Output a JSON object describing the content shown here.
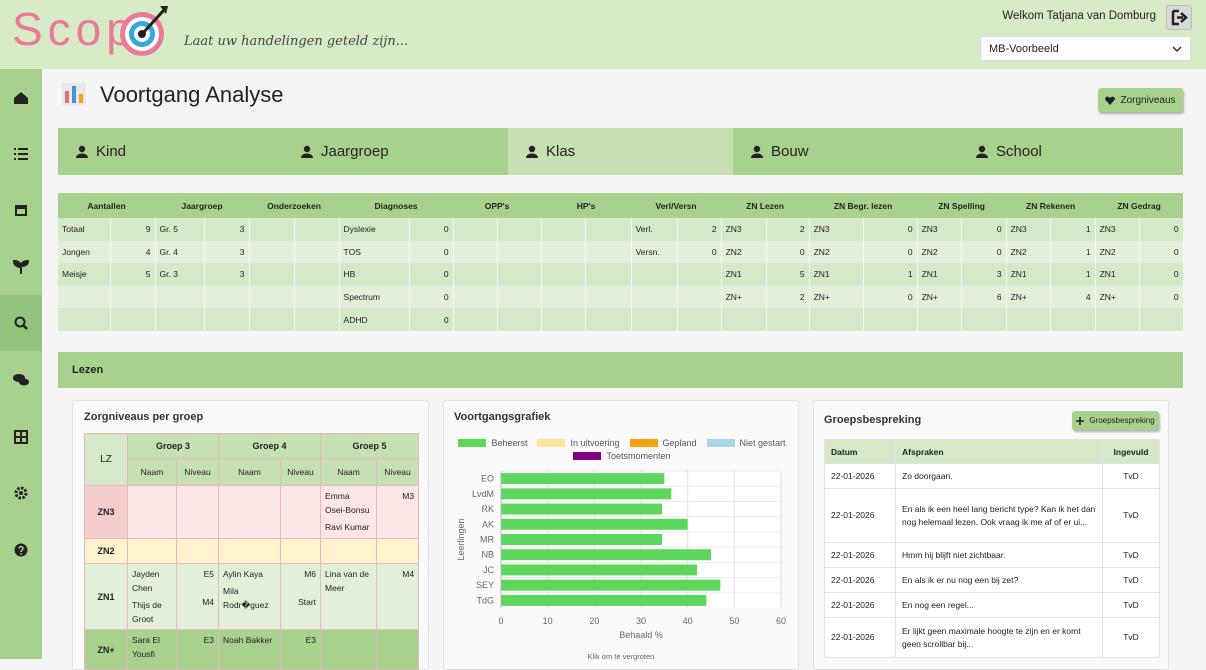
{
  "header": {
    "logo": "Scop",
    "tagline": "Laat uw handelingen geteld zijn...",
    "welcome": "Welkom Tatjana van Domburg",
    "school_select": "MB-Voorbeeld"
  },
  "page": {
    "title": "Voortgang Analyse",
    "button": "Zorgniveaus"
  },
  "tabs": [
    "Kind",
    "Jaargroep",
    "Klas",
    "Bouw",
    "School"
  ],
  "active_tab": 2,
  "stats_table": {
    "headers": [
      "Aantallen",
      "Jaargroep",
      "Onderzoeken",
      "Diagnoses",
      "OPP's",
      "HP's",
      "Verl/Versn",
      "ZN Lezen",
      "ZN Begr. lezen",
      "ZN Spelling",
      "ZN Rekenen",
      "ZN Gedrag"
    ],
    "rows": [
      [
        "Totaal",
        9,
        "Gr. 5",
        3,
        null,
        null,
        "Dyslexie",
        0,
        null,
        null,
        null,
        null,
        "Verl.",
        2,
        "ZN3",
        2,
        "ZN3",
        0,
        "ZN3",
        0,
        "ZN3",
        1,
        "ZN3",
        0
      ],
      [
        "Jongen",
        4,
        "Gr. 4",
        3,
        null,
        null,
        "TOS",
        0,
        null,
        null,
        null,
        null,
        "Versn.",
        0,
        "ZN2",
        0,
        "ZN2",
        0,
        "ZN2",
        0,
        "ZN2",
        1,
        "ZN2",
        0
      ],
      [
        "Meisje",
        5,
        "Gr. 3",
        3,
        null,
        null,
        "HB",
        0,
        null,
        null,
        null,
        null,
        null,
        null,
        "ZN1",
        5,
        "ZN1",
        1,
        "ZN1",
        3,
        "ZN1",
        1,
        "ZN1",
        0
      ],
      [
        null,
        null,
        null,
        null,
        null,
        null,
        "Spectrum",
        0,
        null,
        null,
        null,
        null,
        null,
        null,
        "ZN+",
        2,
        "ZN+",
        0,
        "ZN+",
        6,
        "ZN+",
        4,
        "ZN+",
        0
      ],
      [
        null,
        null,
        null,
        null,
        null,
        null,
        "ADHD",
        0,
        null,
        null,
        null,
        null,
        null,
        null,
        null,
        null,
        null,
        null,
        null,
        null,
        null,
        null,
        null,
        null
      ]
    ]
  },
  "section": {
    "title": "Lezen"
  },
  "zorgniveaus_card": {
    "title": "Zorgniveaus per groep",
    "corner_header": "LZ",
    "groups": [
      "Groep 3",
      "Groep 4",
      "Groep 5"
    ],
    "subheaders": [
      "Naam",
      "Niveau",
      "Naam",
      "Niveau",
      "Naam",
      "Niveau"
    ],
    "rows": [
      {
        "level": "ZN3",
        "groups": [
          {
            "names": [],
            "levels": []
          },
          {
            "names": [],
            "levels": []
          },
          {
            "names": [
              "Emma Osei-Bonsu",
              "Ravi Kumar"
            ],
            "levels": [
              "M3"
            ]
          }
        ]
      },
      {
        "level": "ZN2",
        "groups": [
          {
            "names": [],
            "levels": []
          },
          {
            "names": [],
            "levels": []
          },
          {
            "names": [],
            "levels": []
          }
        ]
      },
      {
        "level": "ZN1",
        "groups": [
          {
            "names": [
              "Jayden Chen",
              "Thijs de Groot"
            ],
            "levels": [
              "E5",
              "M4"
            ]
          },
          {
            "names": [
              "Aylin Kaya",
              "Mila Rodr�guez"
            ],
            "levels": [
              "M6",
              "Start"
            ]
          },
          {
            "names": [
              "Lina van de Meer"
            ],
            "levels": [
              "M4"
            ]
          }
        ]
      },
      {
        "level": "ZN+",
        "groups": [
          {
            "names": [
              "Sara El Yousfi"
            ],
            "levels": [
              "E3"
            ]
          },
          {
            "names": [
              "Noah Bakker"
            ],
            "levels": [
              "E3"
            ]
          },
          {
            "names": [],
            "levels": []
          }
        ]
      }
    ]
  },
  "progress_card": {
    "title": "Voortgangsgrafiek",
    "footer": "Klik om te vergroten",
    "chart_data": {
      "type": "bar",
      "orientation": "horizontal",
      "xlabel": "Behaald %",
      "ylabel": "Leerlingen",
      "categories": [
        "EO",
        "LvdM",
        "RK",
        "AK",
        "MR",
        "NB",
        "JC",
        "SEY",
        "TdG"
      ],
      "values": [
        35,
        36.5,
        34.5,
        40,
        34.5,
        45,
        42,
        47,
        44
      ],
      "color": "#5dd65d",
      "legend": [
        {
          "name": "Beheerst",
          "color": "#5dd65d"
        },
        {
          "name": "In uitvoering",
          "color": "#ffe49c"
        },
        {
          "name": "Gepland",
          "color": "#f5a20c"
        },
        {
          "name": "Niet gestart",
          "color": "#a9d5e8"
        },
        {
          "name": "Toetsmomenten",
          "color": "#800080"
        }
      ],
      "xlim": [
        0,
        60
      ],
      "xticks": [
        0,
        10,
        20,
        30,
        40,
        50,
        60
      ],
      "grid": true
    }
  },
  "groepsbespreking_card": {
    "title": "Groepsbespreking",
    "button": "Groepsbespreking",
    "headers": [
      "Datum",
      "Afspraken",
      "Ingevuld"
    ],
    "rows": [
      [
        "22-01-2026",
        "Zo doorgaan.",
        "TvD"
      ],
      [
        "22-01-2026",
        "En als ik een heel lang bericht type? Kan ik het dan nog helemaal lezen. Ook vraag ik me af of er ui...",
        "TvD"
      ],
      [
        "22-01-2026",
        "Hmm hij blijft niet zichtbaar.",
        "TvD"
      ],
      [
        "22-01-2026",
        "En als ik er nu nog een bij zet?",
        "TvD"
      ],
      [
        "22-01-2026",
        "En nog een regel...",
        "TvD"
      ],
      [
        "22-01-2026",
        "Er lijkt geen maximale hoogte te zijn en er komt geen scrollbar bij...",
        "TvD"
      ]
    ]
  }
}
